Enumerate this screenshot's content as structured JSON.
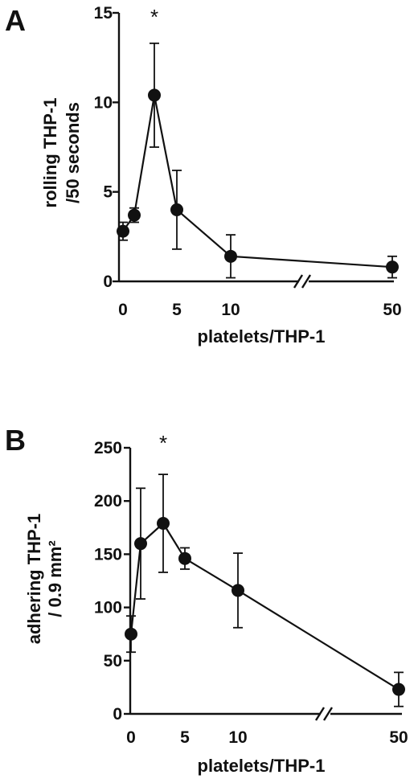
{
  "chart_data": [
    {
      "panel": "A",
      "type": "line",
      "ylabel_lines": [
        "rolling THP-1",
        "/50 seconds"
      ],
      "xlabel": "platelets/THP-1",
      "ylim": [
        0,
        15
      ],
      "y_ticks": [
        "0",
        "5",
        "10",
        "15"
      ],
      "x_tick_labels": [
        "0",
        "5",
        "10",
        "50"
      ],
      "x_axis_break": "between 10 and 50",
      "x": [
        0,
        1,
        3,
        5,
        10,
        50
      ],
      "values": [
        2.8,
        3.7,
        10.4,
        4.0,
        1.4,
        0.8
      ],
      "error": [
        0.5,
        0.4,
        2.9,
        2.2,
        1.2,
        0.6
      ],
      "annotation": "*",
      "annotation_x": 3,
      "marker": "filled circle",
      "color": "#111111"
    },
    {
      "panel": "B",
      "type": "line",
      "ylabel_lines": [
        "adhering THP-1",
        "/ 0.9 mm²"
      ],
      "xlabel": "platelets/THP-1",
      "ylim": [
        0,
        250
      ],
      "y_ticks": [
        "0",
        "50",
        "100",
        "150",
        "200",
        "250"
      ],
      "x_tick_labels": [
        "0",
        "5",
        "10",
        "50"
      ],
      "x_axis_break": "between 10 and 50",
      "x": [
        0,
        1,
        3,
        5,
        10,
        50
      ],
      "values": [
        75,
        160,
        179,
        146,
        116,
        23
      ],
      "error": [
        17,
        52,
        46,
        10,
        35,
        16
      ],
      "annotation": "*",
      "annotation_x": 3,
      "marker": "filled circle",
      "color": "#111111"
    }
  ]
}
